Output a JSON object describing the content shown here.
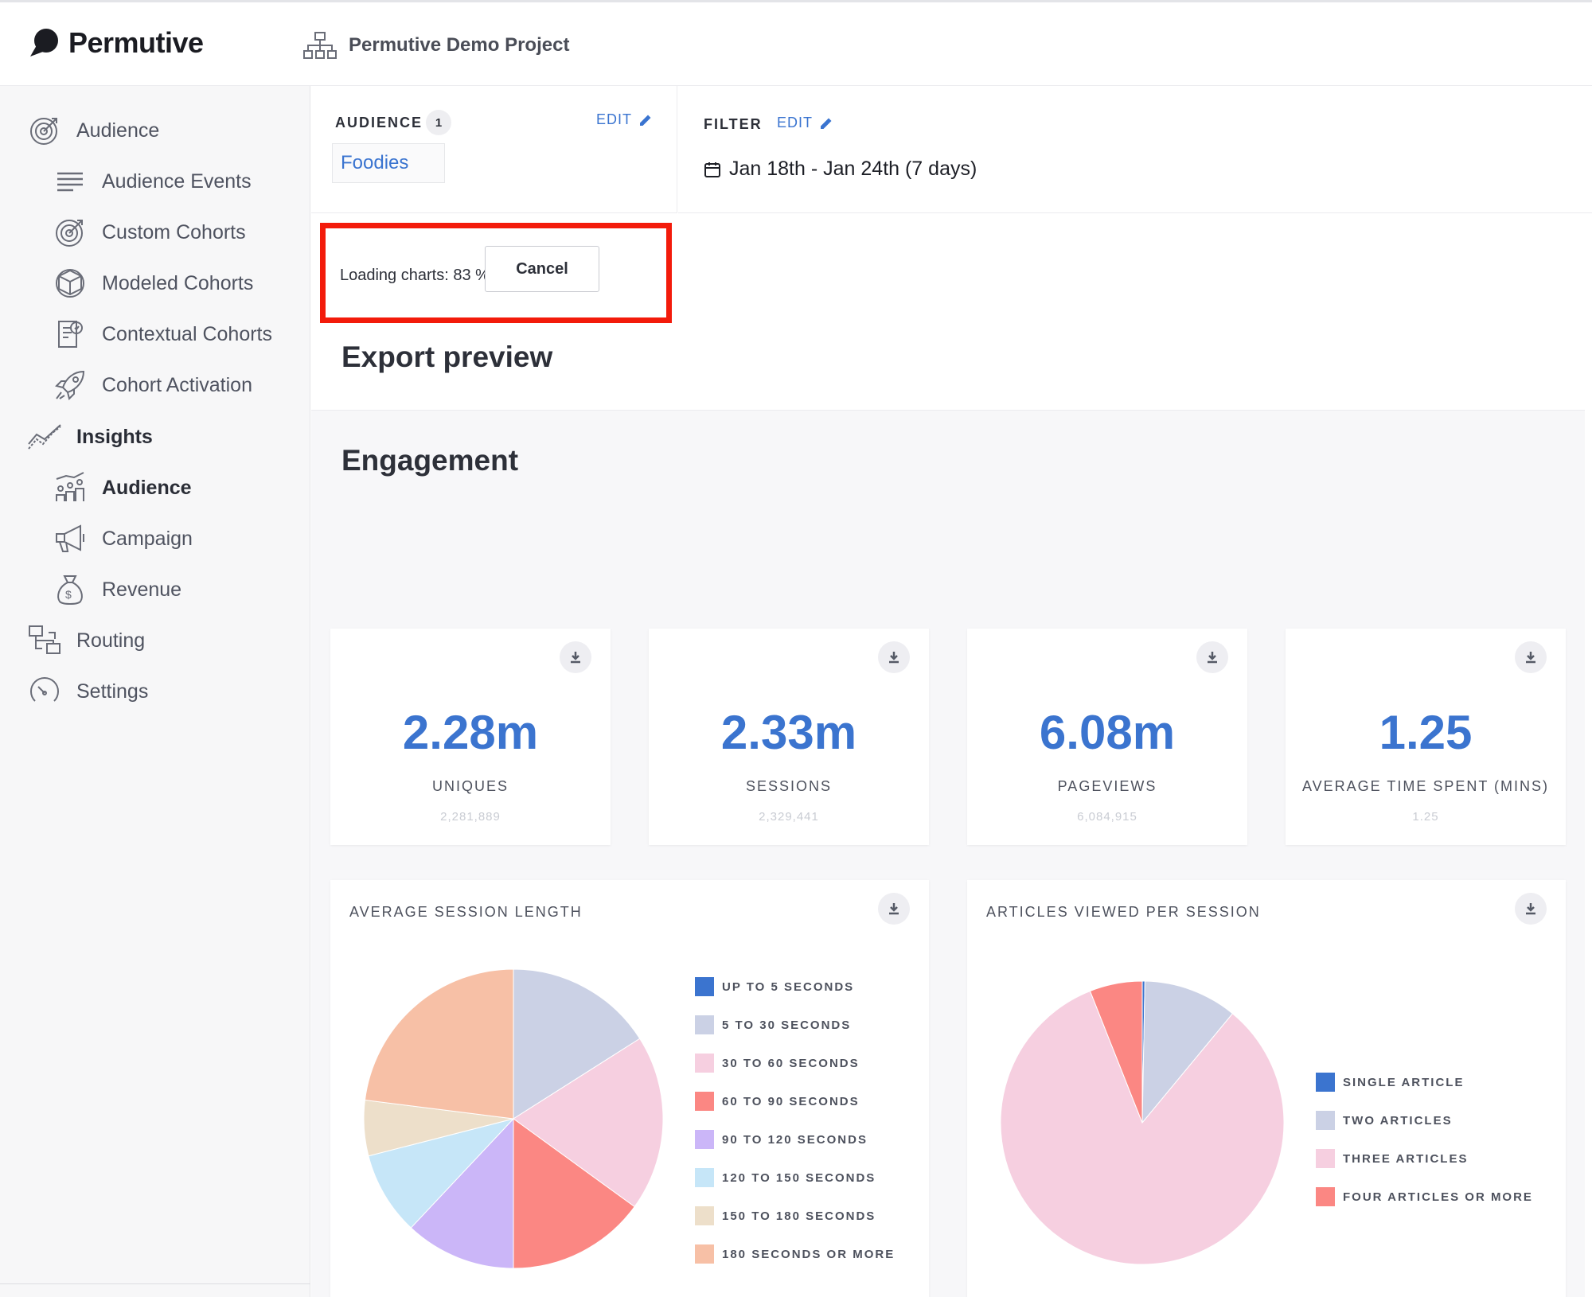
{
  "app": {
    "brand": "Permutive",
    "project": "Permutive Demo Project"
  },
  "sidebar": {
    "items": [
      {
        "label": "Audience",
        "icon": "target-icon"
      },
      {
        "label": "Audience Events",
        "icon": "lines-icon"
      },
      {
        "label": "Custom Cohorts",
        "icon": "target-icon"
      },
      {
        "label": "Modeled Cohorts",
        "icon": "cube-icon"
      },
      {
        "label": "Contextual Cohorts",
        "icon": "document-icon"
      },
      {
        "label": "Cohort Activation",
        "icon": "rocket-icon"
      },
      {
        "label": "Insights",
        "icon": "trend-icon"
      },
      {
        "label": "Audience",
        "icon": "audience-chart-icon"
      },
      {
        "label": "Campaign",
        "icon": "megaphone-icon"
      },
      {
        "label": "Revenue",
        "icon": "money-bag-icon"
      },
      {
        "label": "Routing",
        "icon": "routing-icon"
      },
      {
        "label": "Settings",
        "icon": "gauge-icon"
      }
    ]
  },
  "audience_panel": {
    "label": "AUDIENCE",
    "count": "1",
    "edit": "EDIT",
    "tag": "Foodies"
  },
  "filter_panel": {
    "label": "FILTER",
    "edit": "EDIT",
    "date_range": "Jan 18th - Jan 24th (7 days)"
  },
  "loading": {
    "text": "Loading charts: 83 %",
    "cancel": "Cancel",
    "highlight_color": "#f31b0b"
  },
  "export_title": "Export preview",
  "engagement": {
    "title": "Engagement",
    "stats": [
      {
        "value": "2.28m",
        "label": "UNIQUES",
        "raw": "2,281,889"
      },
      {
        "value": "2.33m",
        "label": "SESSIONS",
        "raw": "2,329,441"
      },
      {
        "value": "6.08m",
        "label": "PAGEVIEWS",
        "raw": "6,084,915"
      },
      {
        "value": "1.25",
        "label": "AVERAGE TIME SPENT (MINS)",
        "raw": "1.25"
      }
    ]
  },
  "colors": {
    "accent": "#3b74cf"
  },
  "chart_data": [
    {
      "type": "pie",
      "title": "AVERAGE SESSION LENGTH",
      "categories": [
        "UP TO 5 SECONDS",
        "5 TO 30 SECONDS",
        "30 TO 60 SECONDS",
        "60 TO 90 SECONDS",
        "90 TO 120 SECONDS",
        "120 TO 150 SECONDS",
        "150 TO 180 SECONDS",
        "180 SECONDS OR MORE"
      ],
      "values": [
        0,
        16,
        19,
        15,
        12,
        9,
        6,
        23
      ],
      "colors": [
        "#3b74cf",
        "#cbd1e5",
        "#f6cfe0",
        "#fb8783",
        "#cbb6f8",
        "#c6e6f8",
        "#eddfca",
        "#f7c0a6"
      ],
      "legend": "right"
    },
    {
      "type": "pie",
      "title": "ARTICLES VIEWED PER SESSION",
      "categories": [
        "SINGLE ARTICLE",
        "TWO ARTICLES",
        "THREE ARTICLES",
        "FOUR ARTICLES OR MORE"
      ],
      "values": [
        0.3,
        10.7,
        83,
        6
      ],
      "colors": [
        "#3b74cf",
        "#cbd1e5",
        "#f6cfe0",
        "#fb8783"
      ],
      "legend": "right"
    }
  ]
}
